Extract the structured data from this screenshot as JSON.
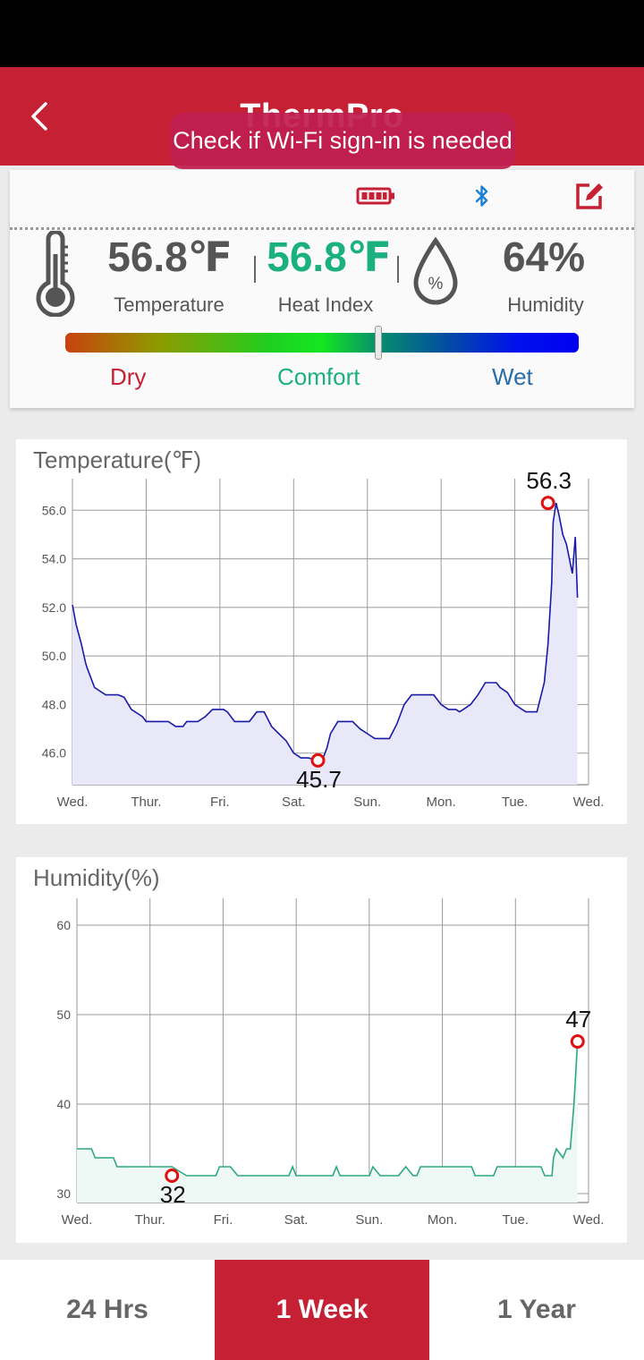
{
  "header": {
    "title": "ThermPro",
    "back_icon": "chevron-left-icon",
    "background": "#c62034"
  },
  "toast": {
    "text": "Check if Wi-Fi sign-in is needed"
  },
  "toolbar": {
    "icons": [
      "battery-icon",
      "bluetooth-icon",
      "edit-icon"
    ],
    "battery_color": "#c62034",
    "bluetooth_color": "#1e7fd6",
    "edit_color": "#c62034"
  },
  "readings": {
    "temperature": {
      "value": "56.8℉",
      "label": "Temperature",
      "color": "#555555"
    },
    "heat_index": {
      "value": "56.8℉",
      "label": "Heat Index",
      "color": "#1bb080"
    },
    "humidity": {
      "value": "64%",
      "label": "Humidity",
      "color": "#555555"
    }
  },
  "comfort_scale": {
    "labels": {
      "dry": "Dry",
      "comfort": "Comfort",
      "wet": "Wet"
    },
    "colors": {
      "dry": "#c62034",
      "comfort": "#1bb080",
      "wet": "#2a6da8"
    },
    "marker_fraction": 0.61
  },
  "tabs": {
    "items": [
      {
        "label": "24 Hrs",
        "active": false
      },
      {
        "label": "1 Week",
        "active": true
      },
      {
        "label": "1 Year",
        "active": false
      }
    ]
  },
  "chart_data": [
    {
      "type": "line",
      "title": "Temperature(℉)",
      "categories": [
        "Wed.",
        "Thur.",
        "Fri.",
        "Sat.",
        "Sun.",
        "Mon.",
        "Tue.",
        "Wed."
      ],
      "ylim": [
        44.7,
        57.3
      ],
      "yticks": [
        "46.0",
        "48.0",
        "50.0",
        "52.0",
        "54.0",
        "56.0"
      ],
      "grid": true,
      "line_color": "#1a1aa8",
      "fill_color": "#e8e8f8",
      "series": [
        {
          "x": [
            0,
            0.05,
            0.12,
            0.18,
            0.2,
            0.3,
            0.45,
            0.62,
            0.7,
            0.8,
            0.95,
            1.0,
            1.05,
            1.15,
            1.3,
            1.4,
            1.5,
            1.55,
            1.6,
            1.7,
            1.8,
            1.9,
            2.0,
            2.05,
            2.1,
            2.2,
            2.3,
            2.4,
            2.5,
            2.6,
            2.7,
            2.8,
            2.9,
            3.0,
            3.1,
            3.2,
            3.33,
            3.4,
            3.45,
            3.5,
            3.6,
            3.7,
            3.8,
            3.9,
            4.0,
            4.1,
            4.2,
            4.3,
            4.4,
            4.5,
            4.6,
            4.7,
            4.8,
            4.9,
            5.0,
            5.1,
            5.2,
            5.25,
            5.3,
            5.4,
            5.5,
            5.6,
            5.7,
            5.75,
            5.8,
            5.9,
            6.0,
            6.1,
            6.15,
            6.2,
            6.3,
            6.4,
            6.45,
            6.5,
            6.52,
            6.56,
            6.6,
            6.65,
            6.7,
            6.74,
            6.78,
            6.82,
            6.85
          ],
          "values": [
            52.1,
            51.3,
            50.5,
            49.7,
            49.5,
            48.7,
            48.4,
            48.4,
            48.3,
            47.8,
            47.5,
            47.3,
            47.3,
            47.3,
            47.3,
            47.1,
            47.1,
            47.3,
            47.3,
            47.3,
            47.5,
            47.8,
            47.8,
            47.8,
            47.7,
            47.3,
            47.3,
            47.3,
            47.7,
            47.7,
            47.1,
            46.8,
            46.5,
            46.0,
            45.8,
            45.8,
            45.7,
            45.8,
            46.2,
            46.8,
            47.3,
            47.3,
            47.3,
            47.0,
            46.8,
            46.6,
            46.6,
            46.6,
            47.2,
            48.0,
            48.4,
            48.4,
            48.4,
            48.4,
            48.0,
            47.8,
            47.8,
            47.7,
            47.8,
            48.0,
            48.4,
            48.9,
            48.9,
            48.9,
            48.7,
            48.5,
            48.0,
            47.8,
            47.7,
            47.7,
            47.7,
            48.9,
            50.5,
            53.0,
            55.5,
            56.3,
            55.8,
            55.0,
            54.6,
            54.0,
            53.4,
            54.9,
            52.4
          ]
        }
      ],
      "annotations": [
        {
          "label": "56.3",
          "x": 6.45,
          "y": 56.3,
          "position": "above"
        },
        {
          "label": "45.7",
          "x": 3.33,
          "y": 45.7,
          "position": "below"
        }
      ]
    },
    {
      "type": "line",
      "title": "Humidity(%)",
      "categories": [
        "Wed.",
        "Thur.",
        "Fri.",
        "Sat.",
        "Sun.",
        "Mon.",
        "Tue.",
        "Wed."
      ],
      "ylim": [
        29,
        63
      ],
      "yticks": [
        "30",
        "40",
        "50",
        "60"
      ],
      "grid": true,
      "line_color": "#2ba783",
      "fill_color": "#eef8f4",
      "series": [
        {
          "x": [
            0,
            0.2,
            0.25,
            0.5,
            0.55,
            1.0,
            1.3,
            1.5,
            1.9,
            1.95,
            2.1,
            2.2,
            2.7,
            2.9,
            2.95,
            3.0,
            3.5,
            3.55,
            3.6,
            3.9,
            4.0,
            4.05,
            4.15,
            4.3,
            4.4,
            4.5,
            4.6,
            4.65,
            4.7,
            4.9,
            4.95,
            5.0,
            5.4,
            5.45,
            5.7,
            5.75,
            6.0,
            6.1,
            6.15,
            6.35,
            6.4,
            6.45,
            6.5,
            6.52,
            6.56,
            6.65,
            6.7,
            6.75,
            6.8,
            6.85
          ],
          "values": [
            35,
            35,
            34,
            34,
            33,
            33,
            33,
            32,
            32,
            33,
            33,
            32,
            32,
            32,
            33,
            32,
            32,
            33,
            32,
            32,
            32,
            33,
            32,
            32,
            32,
            33,
            32,
            32,
            33,
            33,
            33,
            33,
            33,
            32,
            32,
            33,
            33,
            33,
            33,
            33,
            32,
            32,
            32,
            34,
            35,
            34,
            35,
            35,
            40,
            47
          ]
        }
      ],
      "annotations": [
        {
          "label": "47",
          "x": 6.85,
          "y": 47,
          "position": "above"
        },
        {
          "label": "32",
          "x": 1.3,
          "y": 32,
          "position": "below"
        }
      ]
    }
  ]
}
